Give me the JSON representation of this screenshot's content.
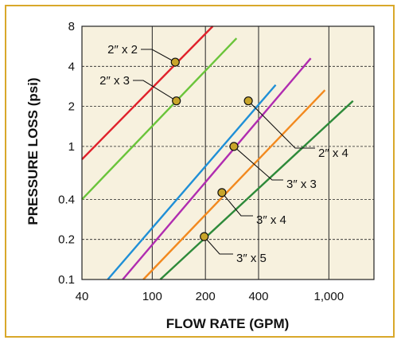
{
  "chart_data": {
    "type": "line",
    "xlabel": "FLOW RATE (GPM)",
    "ylabel": "PRESSURE LOSS (psi)",
    "x_scale": "log",
    "y_scale": "log",
    "xlim": [
      40,
      1800
    ],
    "ylim": [
      0.1,
      8
    ],
    "x_ticks": [
      {
        "value": 40,
        "label": "40"
      },
      {
        "value": 100,
        "label": "100"
      },
      {
        "value": 200,
        "label": "200"
      },
      {
        "value": 400,
        "label": "400"
      },
      {
        "value": 1000,
        "label": "1,000"
      }
    ],
    "y_ticks": [
      {
        "value": 0.1,
        "label": "0.1"
      },
      {
        "value": 0.2,
        "label": "0.2"
      },
      {
        "value": 0.4,
        "label": "0.4"
      },
      {
        "value": 1,
        "label": "1"
      },
      {
        "value": 2,
        "label": "2"
      },
      {
        "value": 4,
        "label": "4"
      },
      {
        "value": 8,
        "label": "8"
      }
    ],
    "grid": true,
    "series": [
      {
        "name": "2″ x 2",
        "color": "#e0212b",
        "x": [
          40,
          220
        ],
        "y": [
          0.8,
          8.0
        ]
      },
      {
        "name": "2″ x 3",
        "color": "#6ac43a",
        "x": [
          40,
          300
        ],
        "y": [
          0.4,
          6.5
        ]
      },
      {
        "name": "2″ x 4",
        "color": "#1f8fd6",
        "x": [
          56,
          500
        ],
        "y": [
          0.1,
          2.9
        ]
      },
      {
        "name": "3″ x 3",
        "color": "#b02cb0",
        "x": [
          68,
          790
        ],
        "y": [
          0.1,
          4.6
        ]
      },
      {
        "name": "3″ x 4",
        "color": "#f2891e",
        "x": [
          89,
          950
        ],
        "y": [
          0.1,
          2.65
        ]
      },
      {
        "name": "3″ x 5",
        "color": "#2e8a3a",
        "x": [
          111,
          1370
        ],
        "y": [
          0.1,
          2.2
        ]
      }
    ],
    "annotations": [
      {
        "label": "2″ x 2",
        "point": [
          135,
          4.3
        ]
      },
      {
        "label": "2″ x 3",
        "point": [
          137,
          2.2
        ]
      },
      {
        "label": "2″ x 4",
        "point": [
          350,
          2.2
        ]
      },
      {
        "label": "3″ x 3",
        "point": [
          290,
          1.0
        ]
      },
      {
        "label": "3″ x 4",
        "point": [
          248,
          0.45
        ]
      },
      {
        "label": "3″ x 5",
        "point": [
          197,
          0.21
        ]
      }
    ]
  }
}
